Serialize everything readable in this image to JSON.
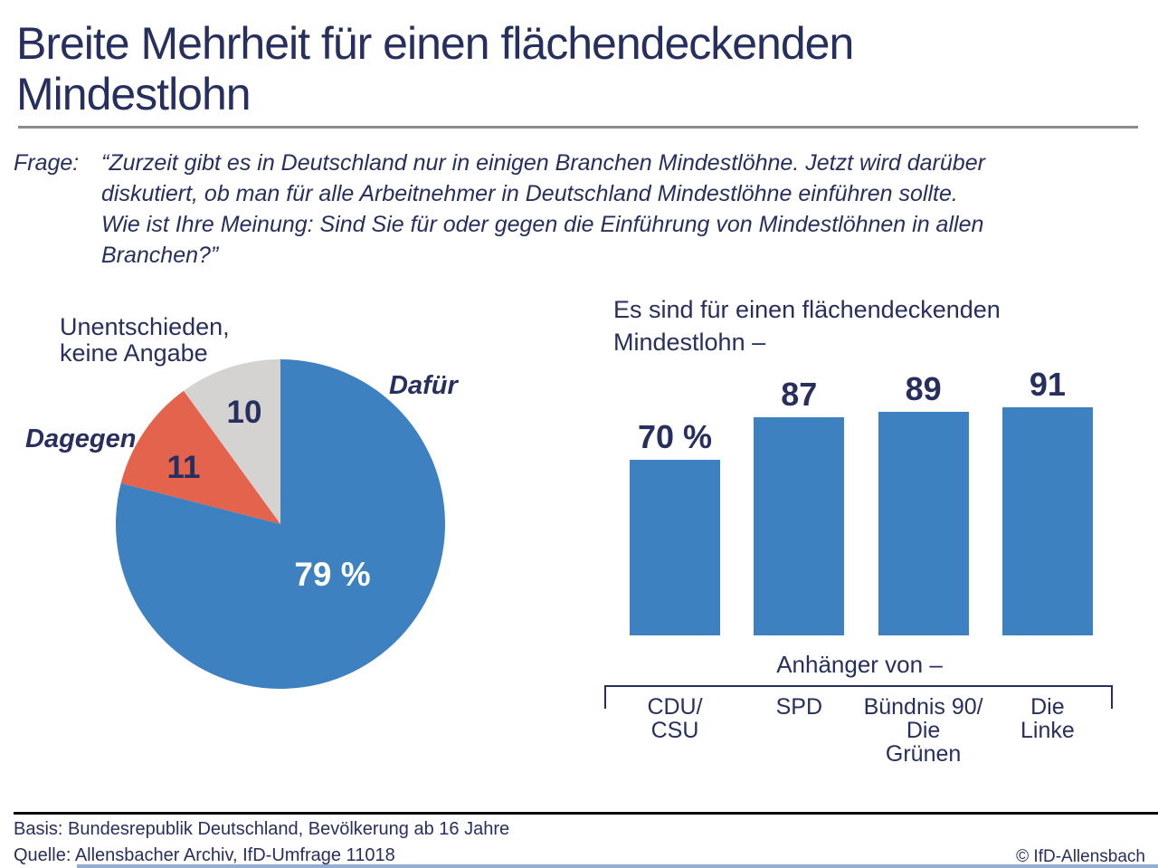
{
  "title": "Breite Mehrheit für einen flächendeckenden\nMindestlohn",
  "question": {
    "label": "Frage:",
    "text": "“Zurzeit gibt es in Deutschland nur in einigen Branchen Mindestlöhne. Jetzt wird darüber\ndiskutiert, ob man für alle Arbeitnehmer in Deutschland Mindestlöhne einführen sollte.\nWie ist Ihre Meinung: Sind Sie für oder gegen die Einführung von Mindestlöhnen in allen\nBranchen?”"
  },
  "chart_data": [
    {
      "type": "pie",
      "unit": "%",
      "start_angle_deg": 0,
      "direction": "clockwise",
      "slices": [
        {
          "label": "Dafür",
          "value": 79,
          "display": "79 %",
          "color": "#3E81C1",
          "label_color": "#ffffff"
        },
        {
          "label": "Dagegen",
          "value": 11,
          "display": "11",
          "color": "#E4634C",
          "label_color": "#272F5E"
        },
        {
          "label": "Unentschieden,\nkeine Angabe",
          "value": 10,
          "display": "10",
          "color": "#D4D3D1",
          "label_color": "#272F5E"
        }
      ]
    },
    {
      "type": "bar",
      "title": "Es sind für einen flächendeckenden\nMindestlohn –",
      "axis_label": "Anhänger von –",
      "categories": [
        "CDU/\nCSU",
        "SPD",
        "Bündnis 90/\nDie\nGrünen",
        "Die\nLinke"
      ],
      "values": [
        70,
        87,
        89,
        91
      ],
      "value_labels": [
        "70 %",
        "87",
        "89",
        "91"
      ],
      "bar_color": "#3E81C1",
      "ylim": [
        0,
        100
      ],
      "grid": false,
      "legend": "none"
    }
  ],
  "footer": {
    "basis": "Basis: Bundesrepublik Deutschland, Bevölkerung ab 16 Jahre",
    "quelle": "Quelle: Allensbacher Archiv, IfD-Umfrage 11018",
    "copyright": "© IfD-Allensbach"
  },
  "colors": {
    "text_navy": "#272F5E",
    "chart_blue": "#3E81C1",
    "chart_red": "#E4634C",
    "chart_gray": "#D4D3D1",
    "divider_gray": "#8C8C8C",
    "footer_line_black": "#0B0B0B",
    "bottom_rule_blue": "#94ADD3"
  }
}
